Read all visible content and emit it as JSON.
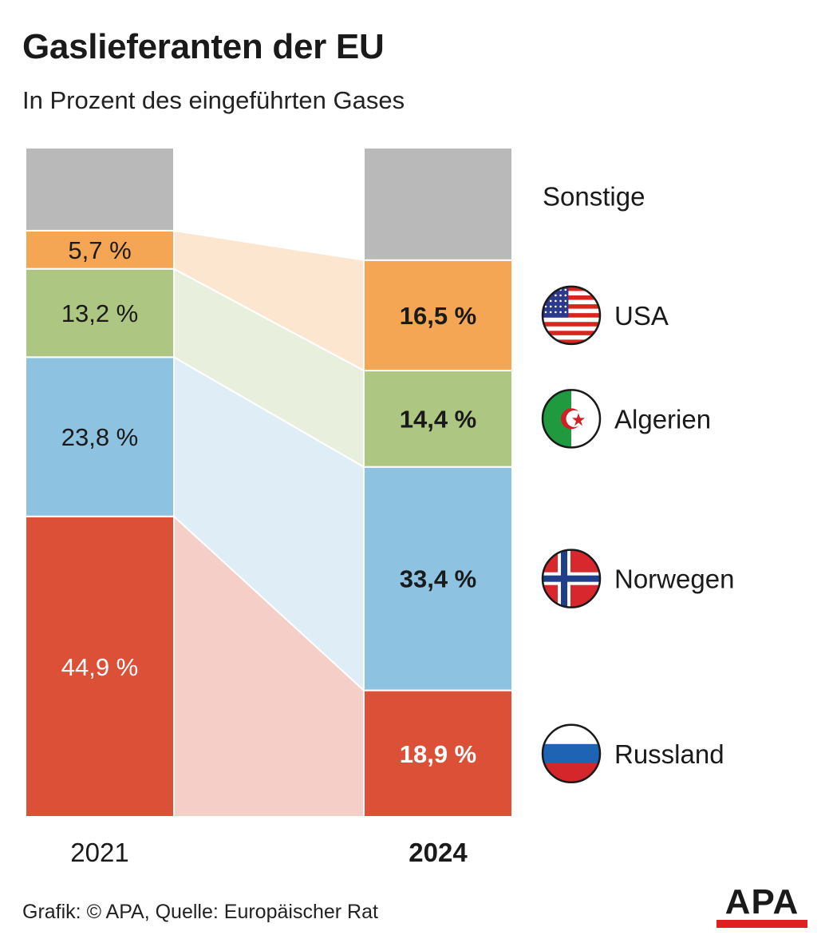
{
  "title": "Gaslieferanten der EU",
  "subtitle": "In Prozent des eingeführten Gases",
  "source": "Grafik: © APA, Quelle: Europäischer Rat",
  "logo_text": "APA",
  "colors": {
    "Sonstige": "#b9b9b9",
    "USA": "#f4a654",
    "Algerien": "#adc783",
    "Norwegen": "#8dc3e0",
    "Russland": "#db5036"
  },
  "chart_data": {
    "type": "bar",
    "stacked": true,
    "categories": [
      "2021",
      "2024"
    ],
    "series": [
      {
        "name": "Russland",
        "values": [
          44.9,
          18.9
        ],
        "labels": [
          "44,9 %",
          "18,9 %"
        ],
        "flag": "russia-flag-icon"
      },
      {
        "name": "Norwegen",
        "values": [
          23.8,
          33.4
        ],
        "labels": [
          "23,8 %",
          "33,4 %"
        ],
        "flag": "norway-flag-icon"
      },
      {
        "name": "Algerien",
        "values": [
          13.2,
          14.4
        ],
        "labels": [
          "13,2 %",
          "14,4 %"
        ],
        "flag": "algeria-flag-icon"
      },
      {
        "name": "USA",
        "values": [
          5.7,
          16.5
        ],
        "labels": [
          "5,7 %",
          "16,5 %"
        ],
        "flag": "usa-flag-icon"
      },
      {
        "name": "Sonstige",
        "values": [
          12.4,
          16.8
        ],
        "labels": [
          "",
          ""
        ],
        "flag": ""
      }
    ]
  }
}
